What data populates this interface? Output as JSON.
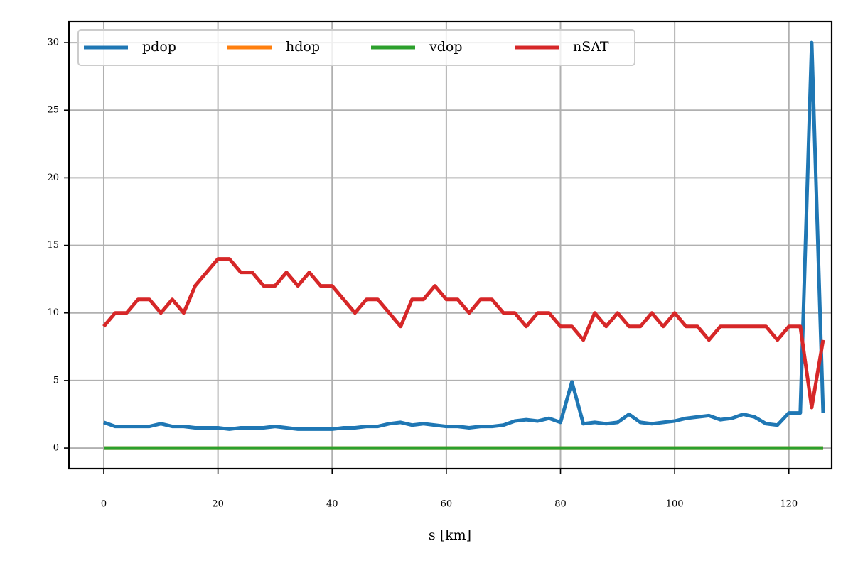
{
  "chart_data": {
    "type": "line",
    "x": [
      0,
      2,
      4,
      6,
      8,
      10,
      12,
      14,
      16,
      18,
      20,
      22,
      24,
      26,
      28,
      30,
      32,
      34,
      36,
      38,
      40,
      42,
      44,
      46,
      48,
      50,
      52,
      54,
      56,
      58,
      60,
      62,
      64,
      66,
      68,
      70,
      72,
      74,
      76,
      78,
      80,
      82,
      84,
      86,
      88,
      90,
      92,
      94,
      96,
      98,
      100,
      102,
      104,
      106,
      108,
      110,
      112,
      114,
      116,
      118,
      120,
      122,
      124,
      126
    ],
    "series": [
      {
        "name": "pdop",
        "color": "#1f77b4",
        "values": [
          1.9,
          1.6,
          1.6,
          1.6,
          1.6,
          1.8,
          1.6,
          1.6,
          1.5,
          1.5,
          1.5,
          1.4,
          1.5,
          1.5,
          1.5,
          1.6,
          1.5,
          1.4,
          1.4,
          1.4,
          1.4,
          1.5,
          1.5,
          1.6,
          1.6,
          1.8,
          1.9,
          1.7,
          1.8,
          1.7,
          1.6,
          1.6,
          1.5,
          1.6,
          1.6,
          1.7,
          2.0,
          2.1,
          2.0,
          2.2,
          1.9,
          4.9,
          1.8,
          1.9,
          1.8,
          1.9,
          2.5,
          1.9,
          1.8,
          1.9,
          2.0,
          2.2,
          2.3,
          2.4,
          2.1,
          2.2,
          2.5,
          2.3,
          1.8,
          1.7,
          2.6,
          2.6,
          30,
          2.6
        ]
      },
      {
        "name": "hdop",
        "color": "#ff7f0e",
        "values": [
          0,
          0,
          0,
          0,
          0,
          0,
          0,
          0,
          0,
          0,
          0,
          0,
          0,
          0,
          0,
          0,
          0,
          0,
          0,
          0,
          0,
          0,
          0,
          0,
          0,
          0,
          0,
          0,
          0,
          0,
          0,
          0,
          0,
          0,
          0,
          0,
          0,
          0,
          0,
          0,
          0,
          0,
          0,
          0,
          0,
          0,
          0,
          0,
          0,
          0,
          0,
          0,
          0,
          0,
          0,
          0,
          0,
          0,
          0,
          0,
          0,
          0,
          0,
          0
        ]
      },
      {
        "name": "vdop",
        "color": "#2ca02c",
        "values": [
          0,
          0,
          0,
          0,
          0,
          0,
          0,
          0,
          0,
          0,
          0,
          0,
          0,
          0,
          0,
          0,
          0,
          0,
          0,
          0,
          0,
          0,
          0,
          0,
          0,
          0,
          0,
          0,
          0,
          0,
          0,
          0,
          0,
          0,
          0,
          0,
          0,
          0,
          0,
          0,
          0,
          0,
          0,
          0,
          0,
          0,
          0,
          0,
          0,
          0,
          0,
          0,
          0,
          0,
          0,
          0,
          0,
          0,
          0,
          0,
          0,
          0,
          0,
          0
        ]
      },
      {
        "name": "nSAT",
        "color": "#d62728",
        "values": [
          9,
          10,
          10,
          11,
          11,
          10,
          11,
          10,
          12,
          13,
          14,
          14,
          13,
          13,
          12,
          12,
          13,
          12,
          13,
          12,
          12,
          11,
          10,
          11,
          11,
          10,
          9,
          11,
          11,
          12,
          11,
          11,
          10,
          11,
          11,
          10,
          10,
          9,
          10,
          10,
          9,
          9,
          8,
          10,
          9,
          10,
          9,
          9,
          10,
          9,
          10,
          9,
          9,
          8,
          9,
          9,
          9,
          9,
          9,
          8,
          9,
          9,
          3,
          8
        ]
      }
    ],
    "xlabel": "s [km]",
    "xlim": [
      -6.1,
      127.5
    ],
    "ylim": [
      -1.52,
      31.58
    ],
    "xticks": [
      0,
      20,
      40,
      60,
      80,
      100,
      120
    ],
    "yticks": [
      0,
      5,
      10,
      15,
      20,
      25,
      30
    ],
    "grid": true,
    "legend": "upper left"
  }
}
